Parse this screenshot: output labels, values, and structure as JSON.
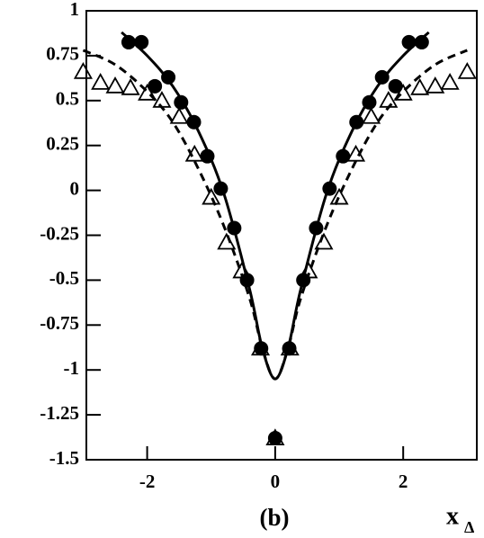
{
  "chart_data": {
    "type": "scatter",
    "label": "(b)",
    "xlabel": "x",
    "xlabel_sub": "Δ",
    "xlim": [
      -2.95,
      3.15
    ],
    "ylim": [
      -1.5,
      1
    ],
    "xticks": [
      -2,
      0,
      2
    ],
    "yticks": [
      1,
      0.75,
      0.5,
      0.25,
      0,
      -0.25,
      -0.5,
      -0.75,
      -1,
      -1.25,
      -1.5
    ],
    "series": [
      {
        "kind": "line",
        "style": "solid",
        "color": "#000",
        "x": [
          -2.4,
          -2,
          -1.6,
          -1.2,
          -0.8,
          -0.4,
          -0.2,
          0,
          0.2,
          0.4,
          0.8,
          1.2,
          1.6,
          2,
          2.4
        ],
        "values": [
          0.88,
          0.75,
          0.58,
          0.33,
          -0.02,
          -0.55,
          -0.88,
          -1.05,
          -0.88,
          -0.55,
          -0.02,
          0.33,
          0.58,
          0.75,
          0.88
        ]
      },
      {
        "kind": "line",
        "style": "dashed",
        "color": "#000",
        "x": [
          -3,
          -2.5,
          -2,
          -1.6,
          -1.2,
          -0.8,
          -0.4,
          -0.2,
          0,
          0.2,
          0.4,
          0.8,
          1.2,
          1.6,
          2,
          2.5,
          3
        ],
        "values": [
          0.78,
          0.7,
          0.55,
          0.38,
          0.12,
          -0.2,
          -0.6,
          -0.88,
          -1.05,
          -0.88,
          -0.6,
          -0.2,
          0.12,
          0.38,
          0.55,
          0.7,
          0.78
        ]
      },
      {
        "kind": "marker",
        "marker": "circle",
        "color": "#000",
        "x": [
          -2.29,
          -2.09,
          -1.88,
          -1.67,
          -1.47,
          -1.27,
          -1.06,
          -0.85,
          -0.64,
          -0.44,
          -0.22,
          0,
          0.22,
          0.44,
          0.64,
          0.85,
          1.06,
          1.27,
          1.47,
          1.67,
          1.88,
          2.09,
          2.29
        ],
        "values": [
          0.825,
          0.825,
          0.58,
          0.63,
          0.49,
          0.38,
          0.19,
          0.01,
          -0.21,
          -0.5,
          -0.88,
          -1.38,
          -0.88,
          -0.5,
          -0.21,
          0.01,
          0.19,
          0.38,
          0.49,
          0.63,
          0.58,
          0.825,
          0.825
        ]
      },
      {
        "kind": "marker",
        "marker": "triangle",
        "color": "#000",
        "x": [
          -3,
          -2.73,
          -2.5,
          -2.26,
          -2,
          -1.77,
          -1.5,
          -1.26,
          -1,
          -0.76,
          -0.52,
          -0.23,
          0,
          0.23,
          0.52,
          0.76,
          1,
          1.26,
          1.5,
          1.77,
          2,
          2.26,
          2.5,
          2.73,
          3
        ],
        "values": [
          0.66,
          0.6,
          0.58,
          0.57,
          0.54,
          0.5,
          0.41,
          0.2,
          -0.04,
          -0.29,
          -0.45,
          -0.88,
          -1.38,
          -0.88,
          -0.45,
          -0.29,
          -0.04,
          0.2,
          0.41,
          0.5,
          0.54,
          0.57,
          0.58,
          0.6,
          0.66
        ]
      }
    ]
  }
}
